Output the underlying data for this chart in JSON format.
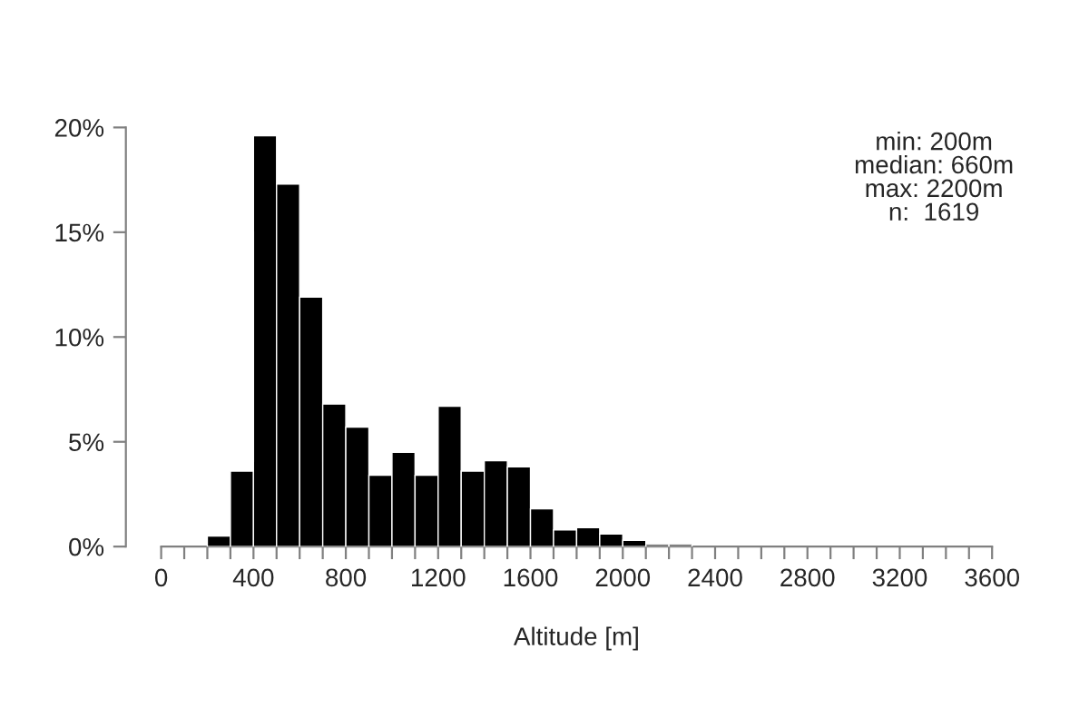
{
  "chart_data": {
    "type": "histogram",
    "xlabel": "Altitude [m]",
    "annotations": [
      "min: 200m\nmedian: 660m\nmax: 2200m\nn:  1619"
    ],
    "bins": [
      200,
      300,
      400,
      500,
      600,
      700,
      800,
      900,
      1000,
      1100,
      1200,
      1300,
      1400,
      1500,
      1600,
      1700,
      1800,
      1900,
      2000,
      2100,
      2200,
      2300
    ],
    "values": [
      0.5,
      3.6,
      19.6,
      17.3,
      11.9,
      6.8,
      5.7,
      3.4,
      4.5,
      3.4,
      6.7,
      3.6,
      4.1,
      3.8,
      1.8,
      0.8,
      0.9,
      0.6,
      0.3,
      0.1,
      0.1
    ],
    "color": "#000000",
    "xlim": [
      0,
      3600
    ],
    "ylim": [
      0,
      20
    ],
    "xticks": [
      0,
      {
        "value": 100,
        "label": null
      },
      {
        "value": 200,
        "label": null
      },
      {
        "value": 300,
        "label": null
      },
      400,
      {
        "value": 500,
        "label": null
      },
      {
        "value": 600,
        "label": null
      },
      {
        "value": 700,
        "label": null
      },
      800,
      {
        "value": 900,
        "label": null
      },
      {
        "value": 1000,
        "label": null
      },
      {
        "value": 1100,
        "label": null
      },
      1200,
      {
        "value": 1300,
        "label": null
      },
      {
        "value": 1400,
        "label": null
      },
      {
        "value": 1500,
        "label": null
      },
      1600,
      {
        "value": 1700,
        "label": null
      },
      {
        "value": 1800,
        "label": null
      },
      {
        "value": 1900,
        "label": null
      },
      2000,
      {
        "value": 2100,
        "label": null
      },
      {
        "value": 2200,
        "label": null
      },
      {
        "value": 2300,
        "label": null
      },
      2400,
      {
        "value": 2500,
        "label": null
      },
      {
        "value": 2600,
        "label": null
      },
      {
        "value": 2700,
        "label": null
      },
      2800,
      {
        "value": 2900,
        "label": null
      },
      {
        "value": 3000,
        "label": null
      },
      {
        "value": 3100,
        "label": null
      },
      3200,
      {
        "value": 3300,
        "label": null
      },
      {
        "value": 3400,
        "label": null
      },
      {
        "value": 3500,
        "label": null
      },
      3600
    ],
    "yticks": [
      {
        "value": 0,
        "label": "0%"
      },
      {
        "value": 5,
        "label": "5%"
      },
      {
        "value": 10,
        "label": "10%"
      },
      {
        "value": 15,
        "label": "15%"
      },
      {
        "value": 20,
        "label": "20%"
      }
    ],
    "grid": false
  }
}
